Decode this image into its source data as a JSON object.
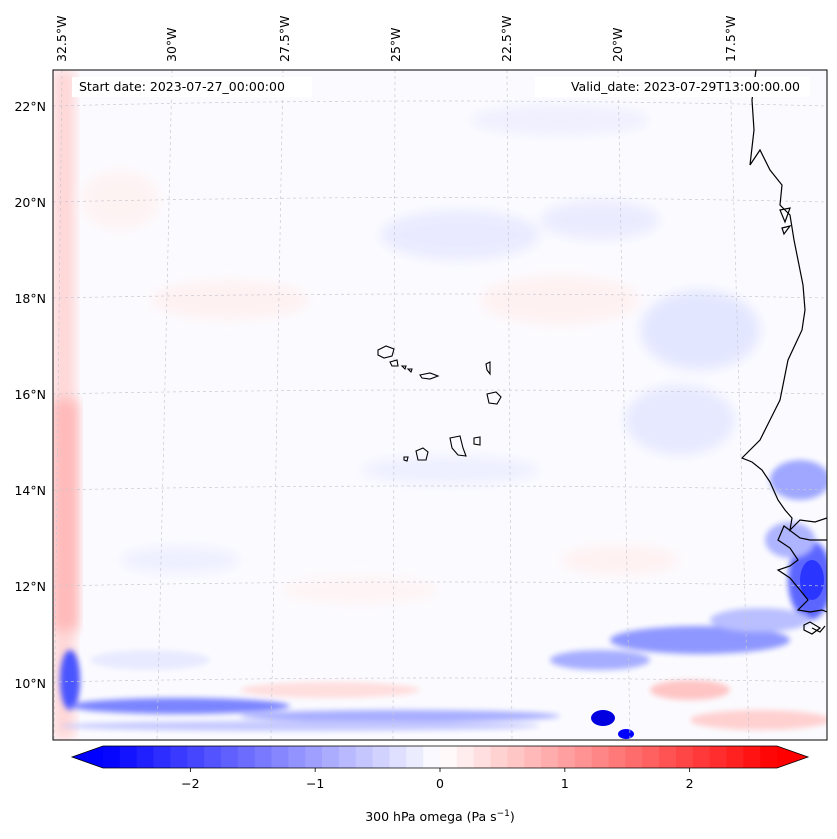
{
  "header": {
    "start_date": "Start date: 2023-07-27_00:00:00",
    "valid_date": "Valid_date: 2023-07-29T13:00:00.00"
  },
  "longitude_labels": [
    "32.5°W",
    "30°W",
    "27.5°W",
    "25°W",
    "22.5°W",
    "20°W",
    "17.5°W"
  ],
  "latitude_labels": [
    "22°N",
    "20°N",
    "18°N",
    "16°N",
    "14°N",
    "12°N",
    "10°N"
  ],
  "colorbar": {
    "label": "300 hPa omega (Pa s",
    "label_sup": "−1",
    "label_end": ")",
    "min": -2.7,
    "max": 2.7,
    "tick_values": [
      -2,
      -1,
      0,
      1,
      2
    ],
    "tick_labels": [
      "−2",
      "−1",
      "0",
      "1",
      "2"
    ],
    "colormap": "bwr",
    "low_color": "#0000ff",
    "mid_color": "#ffffff",
    "high_color": "#ff0000"
  },
  "colors": {
    "coastline": "#000000",
    "gridline": "#c8c8c8",
    "frame": "#000000"
  }
}
